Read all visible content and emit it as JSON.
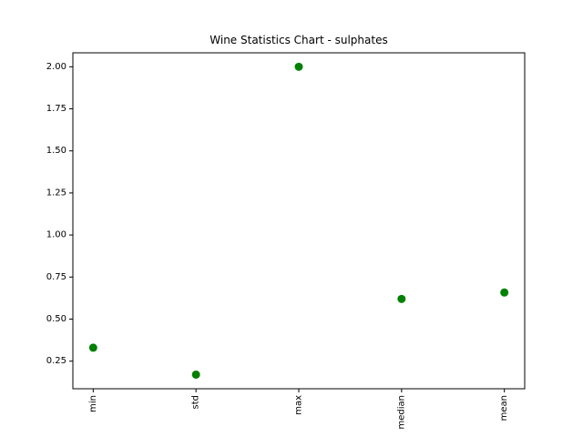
{
  "chart_data": {
    "type": "scatter",
    "title": "Wine Statistics Chart - sulphates",
    "xlabel": "",
    "ylabel": "",
    "categories": [
      "min",
      "std",
      "max",
      "median",
      "mean"
    ],
    "series": [
      {
        "values": [
          0.33,
          0.17,
          2.0,
          0.62,
          0.658
        ]
      }
    ],
    "ylim": [
      0.086,
      2.083
    ],
    "yticks": [
      0.25,
      0.5,
      0.75,
      1.0,
      1.25,
      1.5,
      1.75,
      2.0
    ],
    "ytick_labels": [
      "0.25",
      "0.50",
      "0.75",
      "1.00",
      "1.25",
      "1.50",
      "1.75",
      "2.00"
    ],
    "xtick_rotation": "vertical",
    "grid": false,
    "legend": "none",
    "marker_color": "#008000"
  }
}
